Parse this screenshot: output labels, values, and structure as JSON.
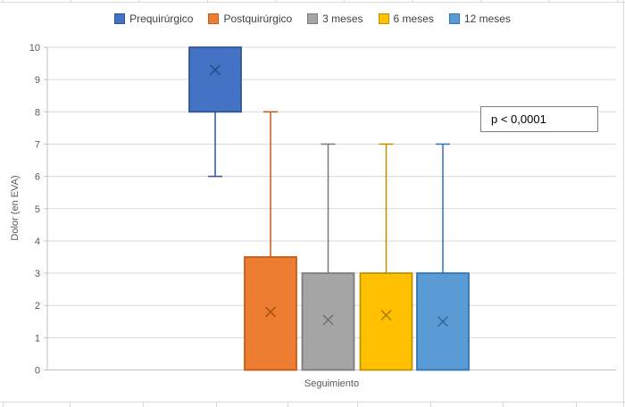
{
  "chart_data": {
    "type": "boxplot",
    "title": "",
    "xlabel": "Seguimiento",
    "ylabel": "Dolor (en EVA)",
    "ylim": [
      0,
      10
    ],
    "yticks": [
      0,
      1,
      2,
      3,
      4,
      5,
      6,
      7,
      8,
      9,
      10
    ],
    "grid": true,
    "legend_position": "top-center",
    "annotation": "p < 0,0001",
    "series": [
      {
        "name": "Prequirúrgico",
        "fill": "#4472C4",
        "border": "#2F5597",
        "marker_color": "#1F3864",
        "q1": 8,
        "q3": 10,
        "whisker_low": 6,
        "whisker_high": 10,
        "mean": 9.3
      },
      {
        "name": "Postquirúrgico",
        "fill": "#ED7D31",
        "border": "#C55A11",
        "marker_color": "#833C00",
        "q1": 0,
        "q3": 3.5,
        "whisker_low": 0,
        "whisker_high": 8,
        "mean": 1.8
      },
      {
        "name": "3 meses",
        "fill": "#A5A5A5",
        "border": "#7B7B7B",
        "marker_color": "#595959",
        "q1": 0,
        "q3": 3,
        "whisker_low": 0,
        "whisker_high": 7,
        "mean": 1.55
      },
      {
        "name": "6 meses",
        "fill": "#FFC000",
        "border": "#BF9000",
        "marker_color": "#7F6000",
        "q1": 0,
        "q3": 3,
        "whisker_low": 0,
        "whisker_high": 7,
        "mean": 1.7
      },
      {
        "name": "12 meses",
        "fill": "#5B9BD5",
        "border": "#2E75B6",
        "marker_color": "#1F4E79",
        "q1": 0,
        "q3": 3,
        "whisker_low": 0,
        "whisker_high": 7,
        "mean": 1.5
      }
    ],
    "style_colors": {
      "gridline": "#D9D9D9",
      "axis_line": "#C0C0C0",
      "tick_label": "#595959",
      "legend_text": "#3F3F3F",
      "annotation_border": "#7F7F7F",
      "edge_artifact": "#D9D9D9"
    }
  }
}
